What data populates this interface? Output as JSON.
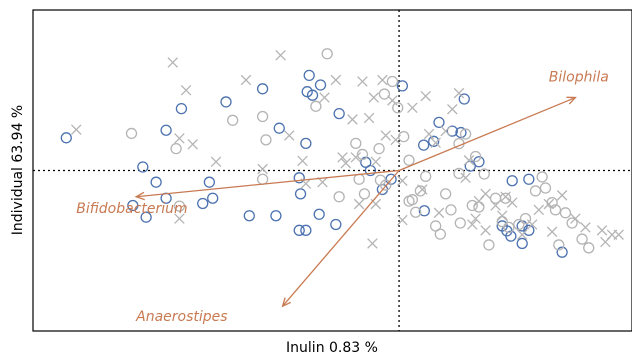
{
  "chart_data": {
    "type": "scatter",
    "title": "",
    "xlabel": "Inulin 0.83 %",
    "ylabel": "Individual 63.94 %",
    "xlim": [
      -5.5,
      3.5
    ],
    "ylim": [
      -5.5,
      5.5
    ],
    "grid": false,
    "reference_lines": {
      "x": 0,
      "y": 0,
      "style": "dotted"
    },
    "colors": {
      "marker_blue": "#4c72b0",
      "marker_gray": "#b4b4b4",
      "arrow": "#c87a52",
      "axes": "#000000"
    },
    "series": [
      {
        "marker": "circle",
        "color": "blue",
        "points": [
          [
            -5.0,
            1.12
          ],
          [
            -3.5,
            1.38
          ],
          [
            -3.27,
            2.12
          ],
          [
            -2.6,
            2.35
          ],
          [
            -2.05,
            2.8
          ],
          [
            -1.8,
            1.45
          ],
          [
            -1.38,
            2.7
          ],
          [
            -1.35,
            3.26
          ],
          [
            -1.3,
            2.58
          ],
          [
            -1.18,
            2.93
          ],
          [
            -1.4,
            0.93
          ],
          [
            -0.9,
            1.95
          ],
          [
            -0.5,
            0.28
          ],
          [
            -0.43,
            0.0
          ],
          [
            -0.25,
            -0.65
          ],
          [
            -0.12,
            -0.3
          ],
          [
            0.05,
            2.9
          ],
          [
            0.37,
            0.87
          ],
          [
            0.52,
            1.0
          ],
          [
            0.6,
            1.65
          ],
          [
            0.8,
            1.35
          ],
          [
            0.98,
            2.45
          ],
          [
            0.93,
            1.3
          ],
          [
            1.07,
            0.15
          ],
          [
            1.2,
            0.3
          ],
          [
            1.55,
            -1.9
          ],
          [
            1.62,
            -2.07
          ],
          [
            1.68,
            -2.25
          ],
          [
            1.85,
            -1.9
          ],
          [
            1.85,
            -2.5
          ],
          [
            1.95,
            -2.05
          ],
          [
            2.45,
            -2.8
          ],
          [
            -2.95,
            -1.13
          ],
          [
            -2.85,
            -0.4
          ],
          [
            -2.8,
            -0.95
          ],
          [
            -2.25,
            -1.55
          ],
          [
            -1.85,
            -1.55
          ],
          [
            -1.4,
            -2.05
          ],
          [
            -1.5,
            -0.25
          ],
          [
            -1.48,
            -0.8
          ],
          [
            -1.5,
            -2.05
          ],
          [
            -1.2,
            -1.5
          ],
          [
            -0.95,
            -1.85
          ],
          [
            0.38,
            -1.38
          ],
          [
            -3.65,
            -0.4
          ],
          [
            -4.0,
            -1.2
          ],
          [
            -3.8,
            -1.6
          ],
          [
            -3.85,
            0.12
          ],
          [
            -3.5,
            -0.95
          ],
          [
            1.7,
            -0.35
          ],
          [
            1.95,
            -0.3
          ]
        ]
      },
      {
        "marker": "circle",
        "color": "gray",
        "points": [
          [
            -4.02,
            1.27
          ],
          [
            -3.35,
            0.75
          ],
          [
            -3.3,
            -1.22
          ],
          [
            -2.5,
            1.72
          ],
          [
            -2.05,
            1.85
          ],
          [
            -2.0,
            1.05
          ],
          [
            -1.08,
            4.0
          ],
          [
            -1.25,
            2.2
          ],
          [
            -0.65,
            0.93
          ],
          [
            -0.55,
            0.55
          ],
          [
            -0.3,
            0.75
          ],
          [
            -0.22,
            2.62
          ],
          [
            -0.1,
            3.05
          ],
          [
            -0.02,
            2.15
          ],
          [
            0.07,
            1.16
          ],
          [
            0.15,
            0.35
          ],
          [
            -0.9,
            -0.9
          ],
          [
            -0.6,
            -0.3
          ],
          [
            -0.52,
            -0.8
          ],
          [
            -0.28,
            -0.33
          ],
          [
            0.15,
            -1.05
          ],
          [
            0.25,
            -1.43
          ],
          [
            0.32,
            -0.7
          ],
          [
            0.55,
            -1.9
          ],
          [
            0.62,
            -2.18
          ],
          [
            0.78,
            -1.35
          ],
          [
            0.9,
            -0.1
          ],
          [
            0.9,
            0.92
          ],
          [
            1.0,
            1.25
          ],
          [
            1.15,
            0.48
          ],
          [
            1.2,
            -1.25
          ],
          [
            1.28,
            -0.12
          ],
          [
            1.45,
            -0.95
          ],
          [
            1.55,
            -1.75
          ],
          [
            1.65,
            -1.95
          ],
          [
            1.8,
            -1.85
          ],
          [
            1.9,
            -1.65
          ],
          [
            2.05,
            -0.7
          ],
          [
            2.15,
            -0.22
          ],
          [
            2.2,
            -0.6
          ],
          [
            2.3,
            -1.1
          ],
          [
            2.35,
            -1.35
          ],
          [
            2.4,
            -2.55
          ],
          [
            2.5,
            -1.45
          ],
          [
            2.6,
            -1.8
          ],
          [
            2.75,
            -2.35
          ],
          [
            2.85,
            -2.65
          ],
          [
            1.35,
            -2.55
          ],
          [
            1.6,
            -0.95
          ],
          [
            -2.05,
            -0.3
          ],
          [
            0.92,
            -1.8
          ],
          [
            1.1,
            -1.2
          ],
          [
            0.4,
            -0.2
          ],
          [
            -0.2,
            -0.5
          ],
          [
            0.7,
            -0.8
          ],
          [
            0.2,
            -1.0
          ]
        ]
      },
      {
        "marker": "x",
        "color": "gray",
        "points": [
          [
            -4.85,
            1.4
          ],
          [
            -3.4,
            3.7
          ],
          [
            -3.2,
            2.75
          ],
          [
            -3.3,
            1.1
          ],
          [
            -3.1,
            0.9
          ],
          [
            -2.75,
            0.3
          ],
          [
            -2.3,
            3.1
          ],
          [
            -2.05,
            0.05
          ],
          [
            -1.78,
            3.95
          ],
          [
            -1.65,
            1.2
          ],
          [
            -1.45,
            0.33
          ],
          [
            -1.12,
            2.5
          ],
          [
            -0.95,
            3.1
          ],
          [
            -0.85,
            0.45
          ],
          [
            -0.7,
            1.75
          ],
          [
            -0.55,
            3.05
          ],
          [
            -0.45,
            1.8
          ],
          [
            -0.38,
            2.5
          ],
          [
            -0.35,
            0.3
          ],
          [
            -0.25,
            3.1
          ],
          [
            -0.2,
            1.2
          ],
          [
            -0.1,
            2.4
          ],
          [
            -0.05,
            1.05
          ],
          [
            0.05,
            -0.35
          ],
          [
            0.05,
            -1.7
          ],
          [
            0.2,
            2.15
          ],
          [
            0.4,
            2.55
          ],
          [
            0.45,
            1.25
          ],
          [
            0.55,
            0.95
          ],
          [
            0.7,
            1.35
          ],
          [
            0.8,
            2.1
          ],
          [
            0.9,
            2.65
          ],
          [
            1.0,
            -0.25
          ],
          [
            1.05,
            0.35
          ],
          [
            1.15,
            -1.65
          ],
          [
            1.2,
            -1.05
          ],
          [
            1.3,
            -0.8
          ],
          [
            1.45,
            -1.2
          ],
          [
            1.55,
            -1.55
          ],
          [
            1.6,
            -0.9
          ],
          [
            1.7,
            -1.1
          ],
          [
            1.85,
            -2.2
          ],
          [
            2.0,
            -1.85
          ],
          [
            2.1,
            -1.35
          ],
          [
            2.25,
            -1.15
          ],
          [
            2.3,
            -2.1
          ],
          [
            2.45,
            -0.85
          ],
          [
            2.65,
            -1.65
          ],
          [
            2.8,
            -1.95
          ],
          [
            3.05,
            -2.05
          ],
          [
            3.1,
            -2.45
          ],
          [
            3.2,
            -2.2
          ],
          [
            3.3,
            -2.2
          ],
          [
            -3.3,
            -1.65
          ],
          [
            -0.6,
            -1.15
          ],
          [
            -0.35,
            -1.15
          ],
          [
            -0.4,
            -2.5
          ],
          [
            0.35,
            -0.65
          ],
          [
            0.6,
            -1.45
          ],
          [
            1.1,
            -1.85
          ],
          [
            1.3,
            -2.05
          ],
          [
            -0.8,
            0.25
          ],
          [
            -0.65,
            0.45
          ],
          [
            -1.4,
            -0.45
          ],
          [
            -1.15,
            -0.4
          ]
        ]
      }
    ],
    "vectors": [
      {
        "label": "Bilophila",
        "x": 2.65,
        "y": 2.5
      },
      {
        "label": "Bifidobacterium",
        "x": -3.95,
        "y": -0.9
      },
      {
        "label": "Anaerostipes",
        "x": -1.75,
        "y": -4.65
      }
    ],
    "vector_labels": [
      {
        "text": "Bilophila",
        "x": 2.25,
        "y": 3.05
      },
      {
        "text": "Bifidobacterium",
        "x": -4.85,
        "y": -1.45
      },
      {
        "text": "Anaerostipes",
        "x": -3.95,
        "y": -5.15
      }
    ]
  }
}
